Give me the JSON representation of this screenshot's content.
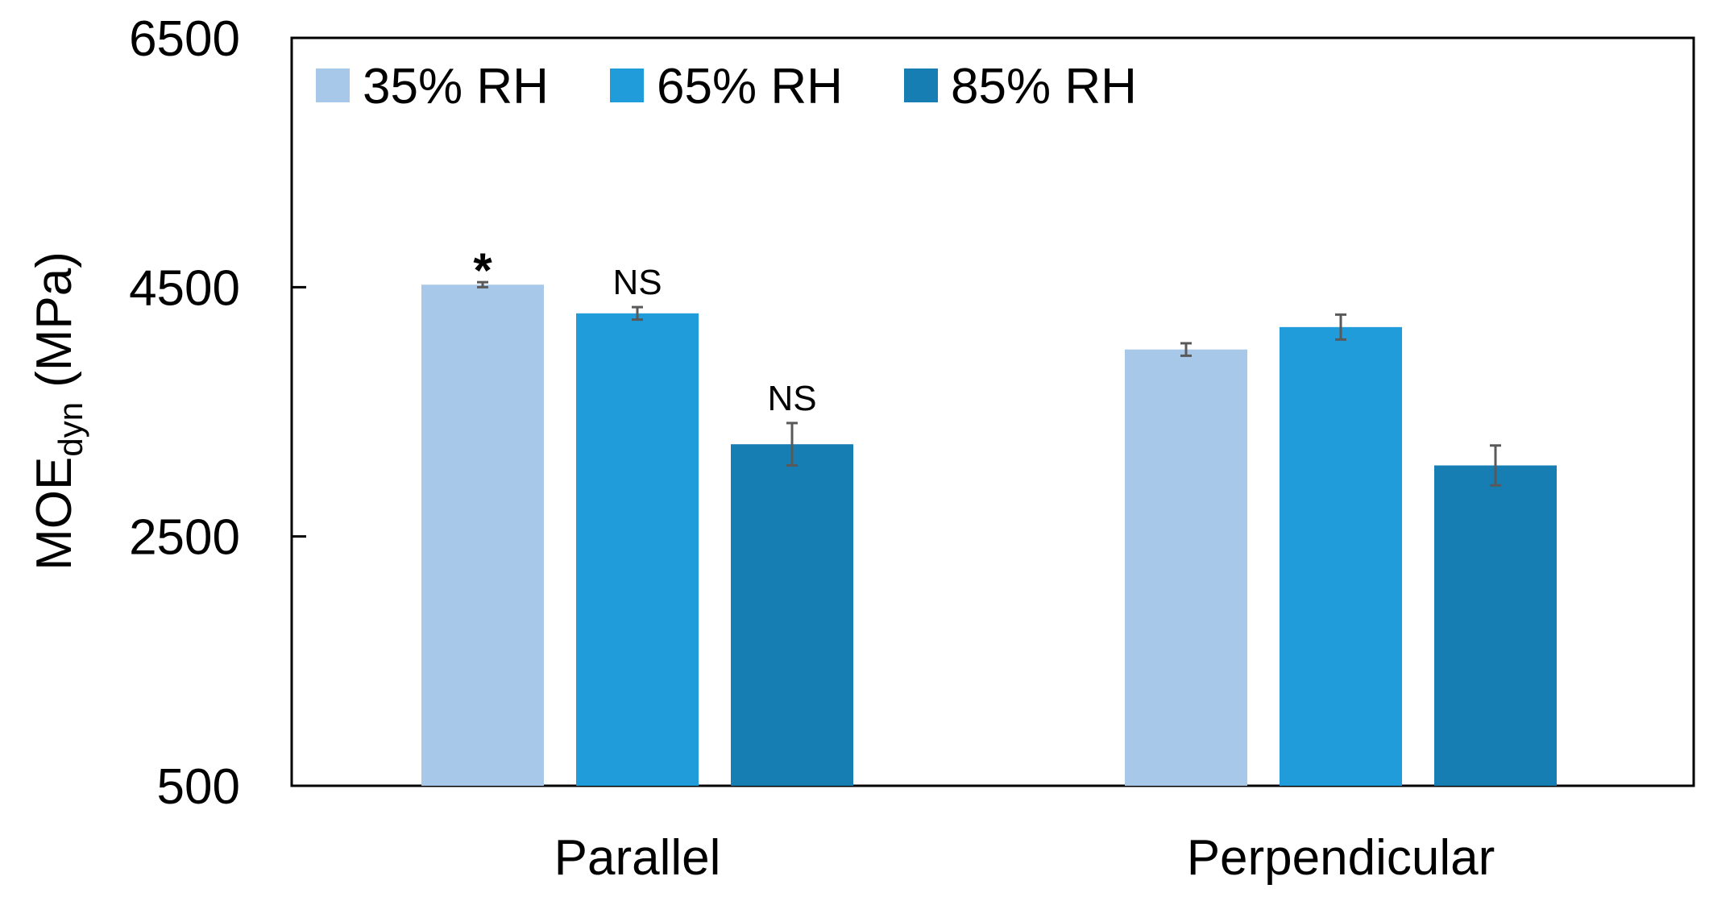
{
  "chart_data": {
    "type": "bar",
    "categories": [
      "Parallel",
      "Perpendicular"
    ],
    "series": [
      {
        "name": "35% RH",
        "color": "#a7c8e8",
        "values": [
          4520,
          4000
        ],
        "errors": [
          20,
          50
        ],
        "annotations": [
          "*",
          ""
        ]
      },
      {
        "name": "65% RH",
        "color": "#1f9cd9",
        "values": [
          4290,
          4180
        ],
        "errors": [
          50,
          100
        ],
        "annotations": [
          "NS",
          ""
        ]
      },
      {
        "name": "85% RH",
        "color": "#167eb3",
        "values": [
          3240,
          3070
        ],
        "errors": [
          170,
          160
        ],
        "annotations": [
          "NS",
          ""
        ]
      }
    ],
    "ylabel_main": "MOE",
    "ylabel_sub": "dyn",
    "ylabel_unit": "(MPa)",
    "ylim": [
      500,
      6500
    ],
    "yticks": [
      "500",
      "2500",
      "4500",
      "6500"
    ],
    "grid": false,
    "legend_position": "top-left, horizontal"
  }
}
